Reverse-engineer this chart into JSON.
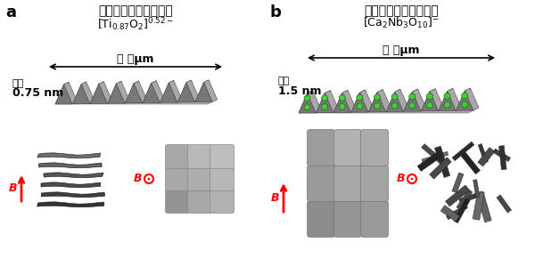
{
  "fig_width": 6.0,
  "fig_height": 3.09,
  "bg_color": "#ffffff",
  "label_a": "a",
  "label_b": "b",
  "title_a_line1": "酸化チタンナノシート",
  "title_b_line1": "酸化ニオブナノシート",
  "width_label": "幅 数μm",
  "thickness_label": "厚み",
  "thickness_a": "0.75 nm",
  "thickness_b": "1.5 nm",
  "arrow_color": "#ff0000",
  "green_ball_color": "#44cc33",
  "text_color": "#000000",
  "sheet_face_top": "#c8c8c8",
  "sheet_face_left": "#787878",
  "sheet_face_right": "#a0a0a0",
  "sheet_edge": "#444444"
}
